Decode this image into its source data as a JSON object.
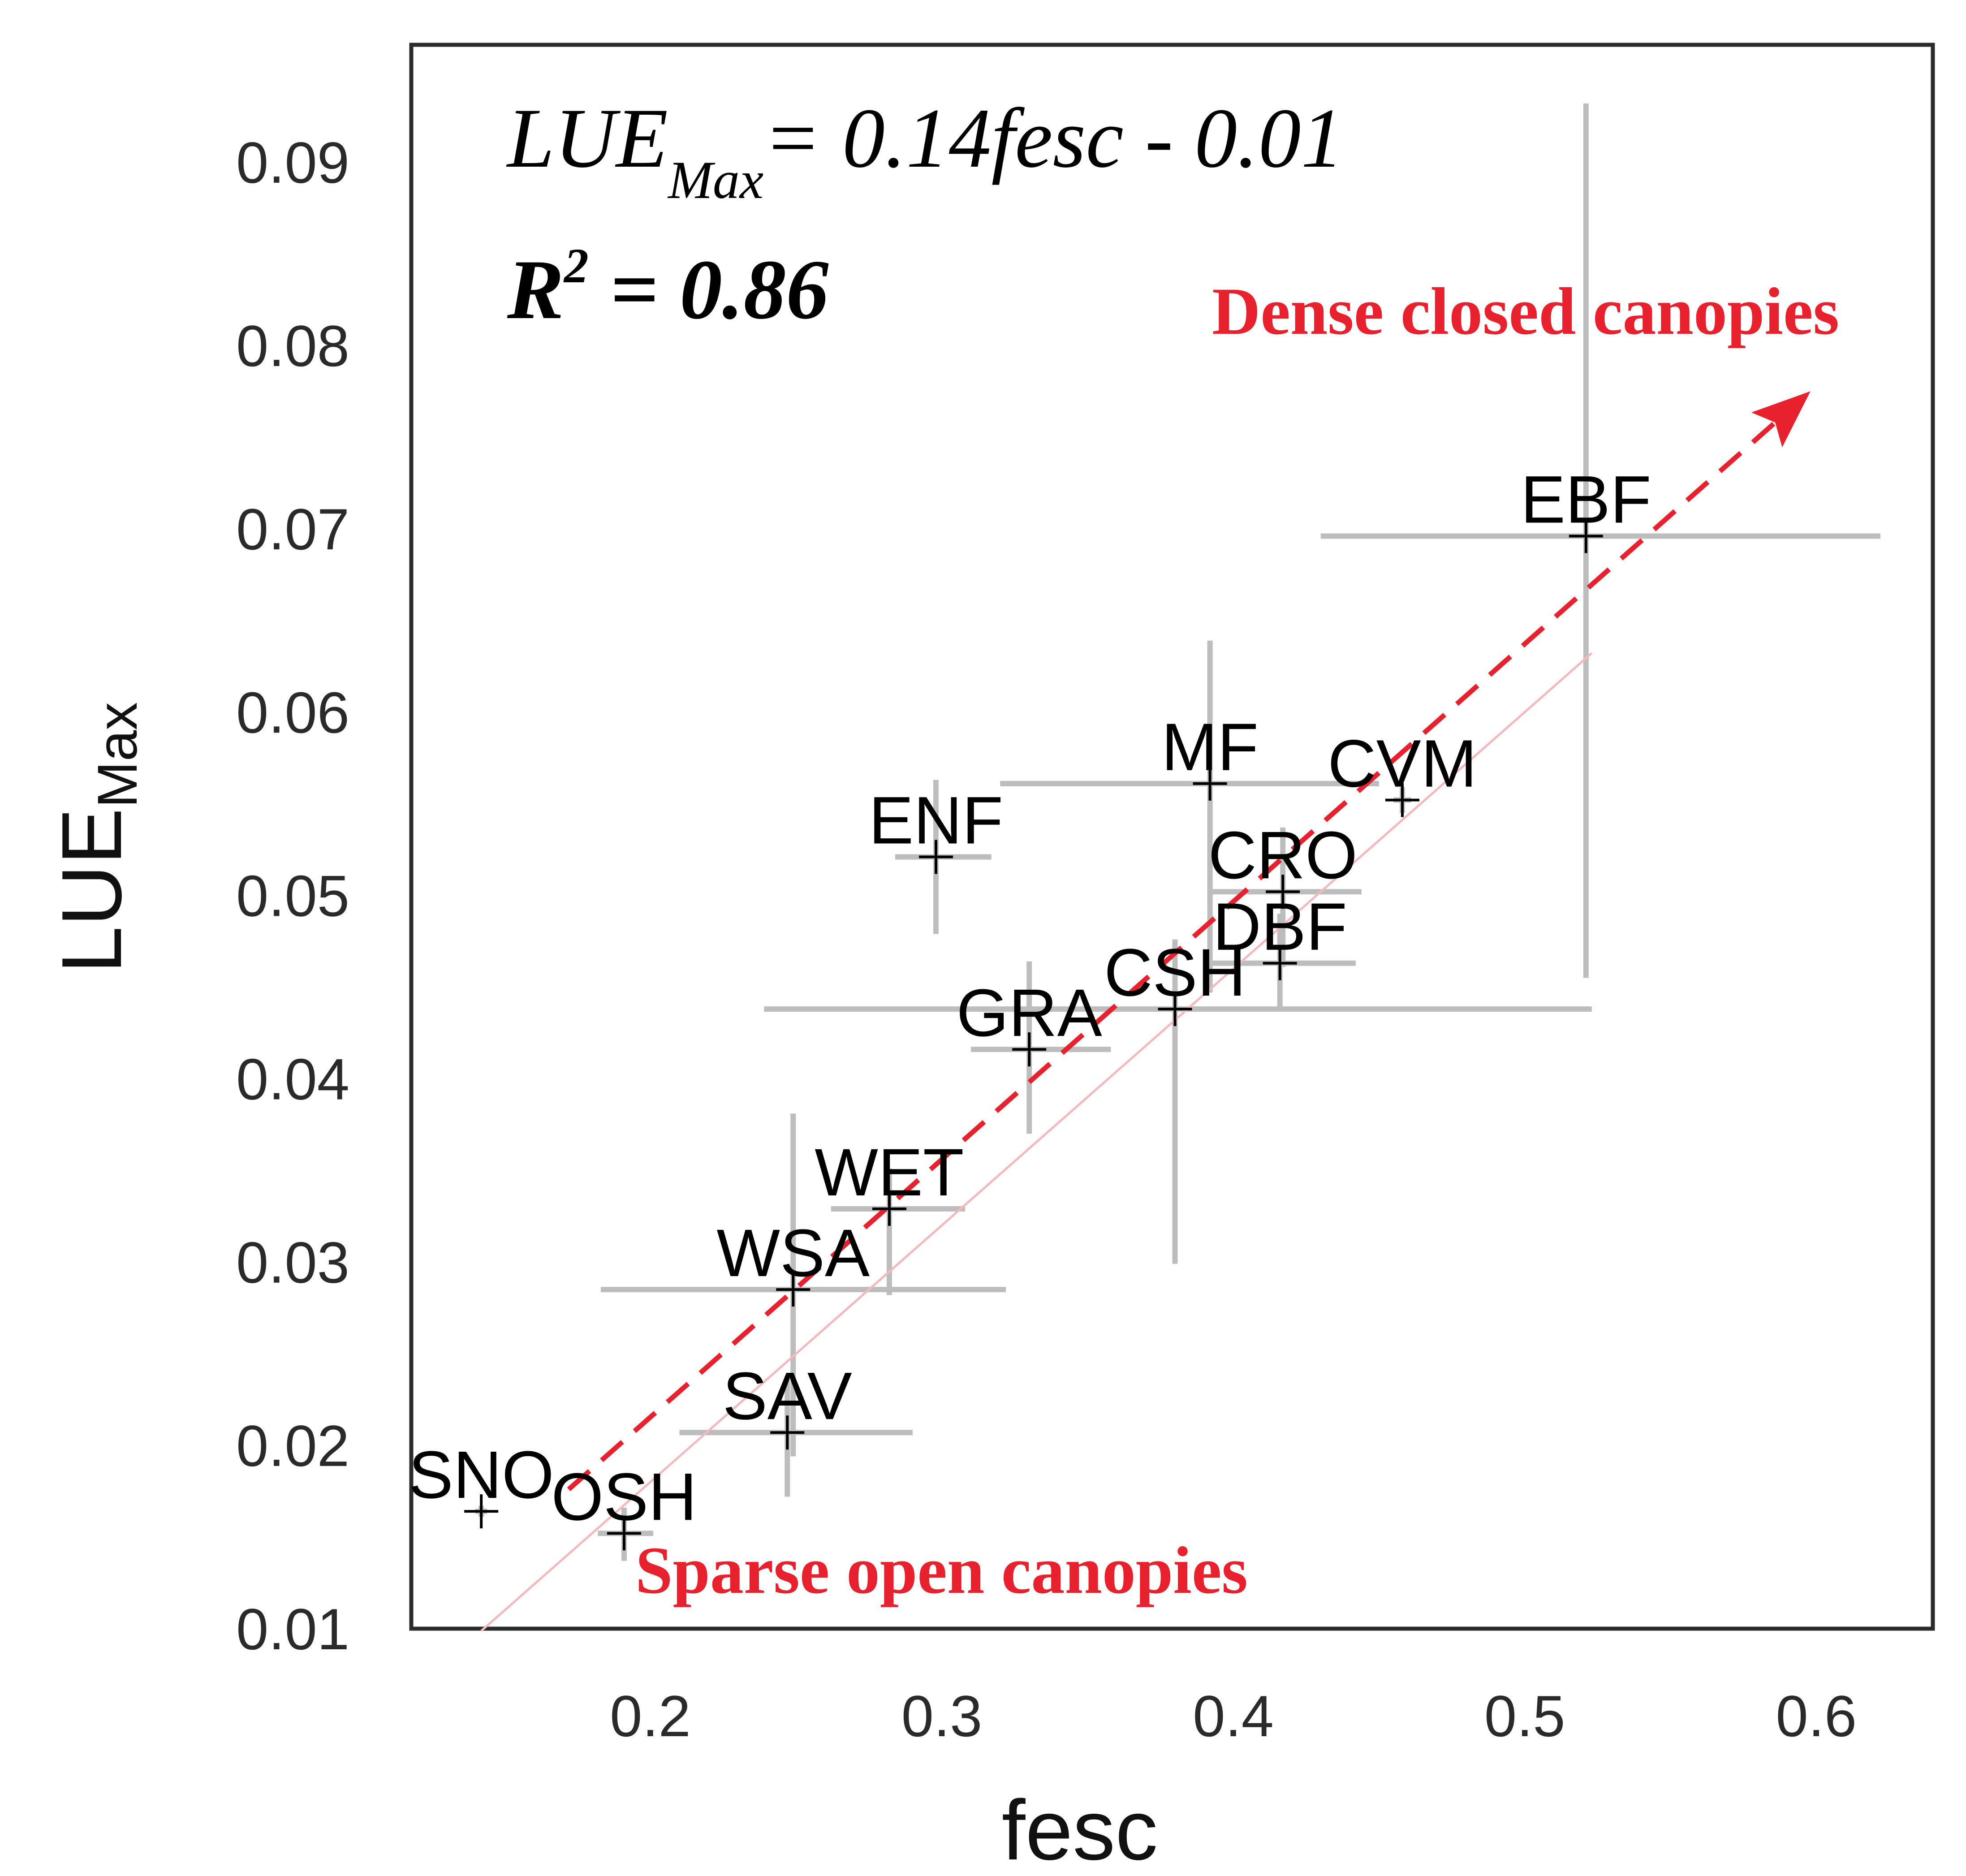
{
  "chart_data": {
    "type": "scatter",
    "xlabel": "fesc",
    "ylabel": {
      "main": "LUE",
      "sub": "Max"
    },
    "xlim": [
      0.118,
      0.64
    ],
    "ylim": [
      0.01,
      0.0964
    ],
    "xticks": [
      0.2,
      0.3,
      0.4,
      0.5,
      0.6
    ],
    "yticks": [
      0.01,
      0.02,
      0.03,
      0.04,
      0.05,
      0.06,
      0.07,
      0.08,
      0.09
    ],
    "xtick_labels": [
      "0.2",
      "0.3",
      "0.4",
      "0.5",
      "0.6"
    ],
    "ytick_labels": [
      "0.01",
      "0.02",
      "0.03",
      "0.04",
      "0.05",
      "0.06",
      "0.07",
      "0.08",
      "0.09"
    ],
    "grid": false,
    "points": [
      {
        "label": "EBF",
        "x": 0.521,
        "y": 0.0696,
        "x_err_low": 0.43,
        "x_err_high": 0.622,
        "y_err_low": 0.0455,
        "y_err_high": 0.0932
      },
      {
        "label": "MF",
        "x": 0.392,
        "y": 0.0561,
        "x_err_low": 0.32,
        "x_err_high": 0.45,
        "y_err_low": 0.0447,
        "y_err_high": 0.0639
      },
      {
        "label": "CVM",
        "x": 0.458,
        "y": 0.0552,
        "x_err_low": 0.455,
        "x_err_high": 0.461,
        "y_err_low": 0.0545,
        "y_err_high": 0.0559
      },
      {
        "label": "ENF",
        "x": 0.298,
        "y": 0.0521,
        "x_err_low": 0.284,
        "x_err_high": 0.317,
        "y_err_low": 0.0479,
        "y_err_high": 0.0563
      },
      {
        "label": "CRO",
        "x": 0.417,
        "y": 0.0502,
        "x_err_low": 0.392,
        "x_err_high": 0.444,
        "y_err_low": 0.0461,
        "y_err_high": 0.0537
      },
      {
        "label": "DBF",
        "x": 0.416,
        "y": 0.0463,
        "x_err_low": 0.392,
        "x_err_high": 0.442,
        "y_err_low": 0.0437,
        "y_err_high": 0.049
      },
      {
        "label": "CSH",
        "x": 0.38,
        "y": 0.0438,
        "x_err_low": 0.239,
        "x_err_high": 0.523,
        "y_err_low": 0.0299,
        "y_err_high": 0.0476
      },
      {
        "label": "GRA",
        "x": 0.33,
        "y": 0.0416,
        "x_err_low": 0.31,
        "x_err_high": 0.358,
        "y_err_low": 0.037,
        "y_err_high": 0.0464
      },
      {
        "label": "WET",
        "x": 0.282,
        "y": 0.0329,
        "x_err_low": 0.262,
        "x_err_high": 0.308,
        "y_err_low": 0.0282,
        "y_err_high": 0.0351
      },
      {
        "label": "WSA",
        "x": 0.249,
        "y": 0.0285,
        "x_err_low": 0.183,
        "x_err_high": 0.322,
        "y_err_low": 0.0194,
        "y_err_high": 0.0381
      },
      {
        "label": "SAV",
        "x": 0.247,
        "y": 0.0207,
        "x_err_low": 0.21,
        "x_err_high": 0.29,
        "y_err_low": 0.0172,
        "y_err_high": 0.0238
      },
      {
        "label": "SNO",
        "x": 0.142,
        "y": 0.0164,
        "x_err_low": 0.14,
        "x_err_high": 0.144,
        "y_err_low": 0.0161,
        "y_err_high": 0.0167
      },
      {
        "label": "OSH",
        "x": 0.191,
        "y": 0.0152,
        "x_err_low": 0.182,
        "x_err_high": 0.201,
        "y_err_low": 0.0137,
        "y_err_high": 0.0166
      }
    ],
    "fit_line": {
      "slope": 0.14,
      "intercept": -0.01,
      "x_range": [
        0.142,
        0.523
      ]
    },
    "trend_arrow": {
      "from": [
        0.172,
        0.0176
      ],
      "to": [
        0.598,
        0.0775
      ],
      "color": "#e8212e"
    },
    "equation": {
      "prefix": "LUE",
      "subscript": "Max",
      "suffix": "= 0.14fesc - 0.01"
    },
    "r_squared": {
      "prefix": "R",
      "superscript": "2",
      "suffix": " = 0.86"
    },
    "annotations": {
      "top": "Dense closed canopies",
      "bottom": "Sparse open canopies",
      "color": "#e8212e"
    }
  }
}
